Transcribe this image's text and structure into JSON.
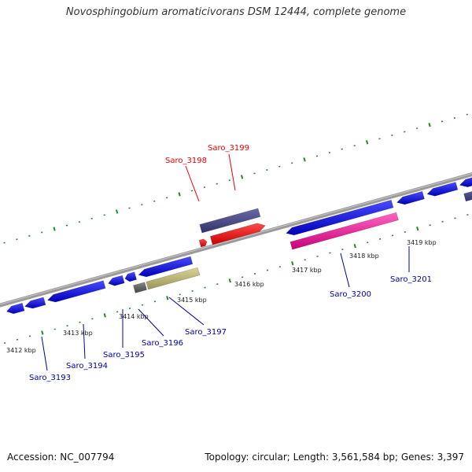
{
  "title": "Novosphingobium aromaticivorans DSM 12444, complete genome",
  "footer": {
    "accession": "Accession: NC_007794",
    "summary": "Topology: circular; Length: 3,561,584 bp; Genes: 3,397"
  },
  "colors": {
    "backbone": "#888888",
    "tick": "#228b22",
    "gene_blue": "#1a1aee",
    "gene_navy": "#4a4a8c",
    "gene_red": "#ff0000",
    "gene_pink": "#ee2a9a",
    "gene_khaki": "#bdb76b",
    "gene_gray": "#666666",
    "label_red": "#ee0000",
    "label_blue": "#0000aa"
  },
  "tick_labels": [
    {
      "text": "3412 kbp"
    },
    {
      "text": "3413 kbp"
    },
    {
      "text": "3414 kbp"
    },
    {
      "text": "3415 kbp"
    },
    {
      "text": "3416 kbp"
    },
    {
      "text": "3417 kbp"
    },
    {
      "text": "3418 kbp"
    },
    {
      "text": "3419 kbp"
    }
  ],
  "gene_labels": [
    {
      "name": "Saro_3193",
      "color": "label_blue"
    },
    {
      "name": "Saro_3194",
      "color": "label_blue"
    },
    {
      "name": "Saro_3195",
      "color": "label_blue"
    },
    {
      "name": "Saro_3196",
      "color": "label_blue"
    },
    {
      "name": "Saro_3197",
      "color": "label_blue"
    },
    {
      "name": "Saro_3198",
      "color": "label_red"
    },
    {
      "name": "Saro_3199",
      "color": "label_red"
    },
    {
      "name": "Saro_3200",
      "color": "label_blue"
    },
    {
      "name": "Saro_3201",
      "color": "label_blue"
    }
  ]
}
